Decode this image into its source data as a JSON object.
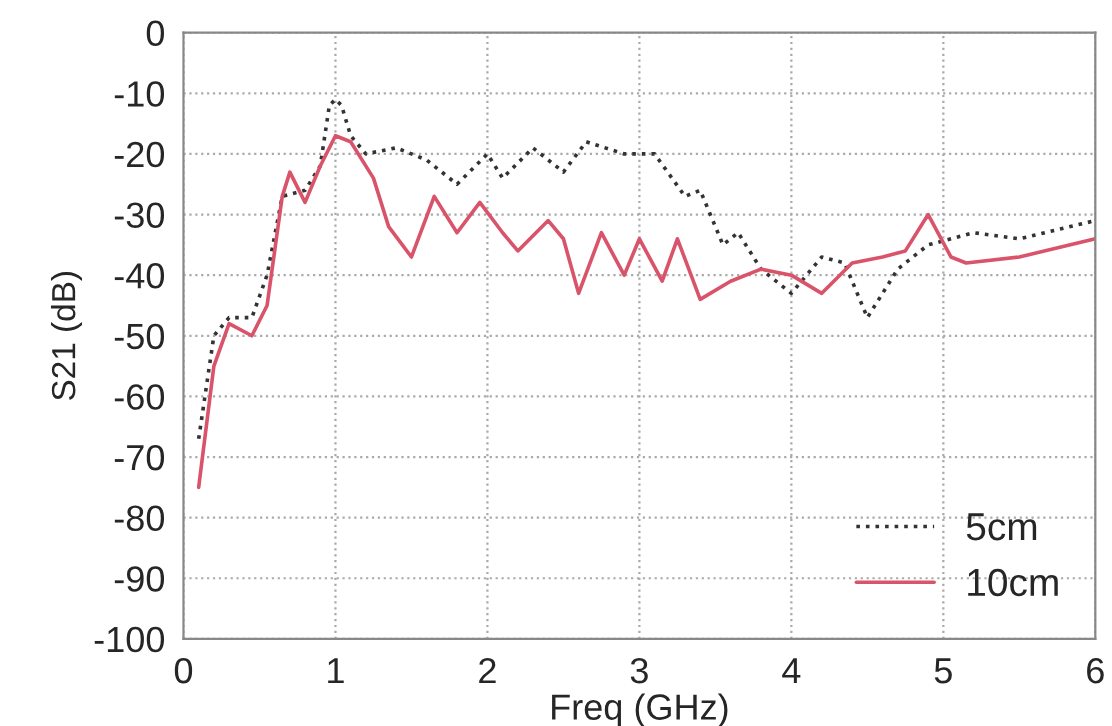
{
  "chart_data": {
    "type": "line",
    "xlabel": "Freq (GHz)",
    "ylabel": "S21 (dB)",
    "xlim": [
      0,
      6
    ],
    "ylim": [
      -100,
      0
    ],
    "xticks": [
      0,
      1,
      2,
      3,
      4,
      5,
      6
    ],
    "yticks": [
      -100,
      -90,
      -80,
      -70,
      -60,
      -50,
      -40,
      -30,
      -20,
      -10,
      0
    ],
    "grid": true,
    "legend": "bottom right",
    "series": [
      {
        "name": "5cm",
        "color": "#333333",
        "line_style": "dotted",
        "x": [
          0.1,
          0.2,
          0.3,
          0.45,
          0.55,
          0.65,
          0.8,
          0.9,
          0.96,
          1.0,
          1.04,
          1.1,
          1.2,
          1.4,
          1.6,
          1.8,
          2.0,
          2.1,
          2.3,
          2.5,
          2.65,
          2.9,
          3.1,
          3.3,
          3.4,
          3.55,
          3.65,
          3.8,
          4.0,
          4.2,
          4.35,
          4.5,
          4.7,
          4.9,
          5.2,
          5.5,
          6.0
        ],
        "values": [
          -67,
          -50,
          -47,
          -47,
          -40,
          -27,
          -26,
          -22,
          -12,
          -11,
          -12,
          -17,
          -20,
          -19,
          -21,
          -25,
          -20,
          -24,
          -19,
          -23,
          -18,
          -20,
          -20,
          -27,
          -26,
          -35,
          -33,
          -39,
          -43,
          -37,
          -38,
          -47,
          -39,
          -35,
          -33,
          -34,
          -31
        ]
      },
      {
        "name": "10cm",
        "color": "#d9546a",
        "line_style": "solid",
        "x": [
          0.1,
          0.2,
          0.3,
          0.45,
          0.55,
          0.65,
          0.7,
          0.8,
          0.9,
          1.0,
          1.1,
          1.25,
          1.35,
          1.5,
          1.65,
          1.8,
          1.95,
          2.1,
          2.2,
          2.4,
          2.5,
          2.6,
          2.75,
          2.9,
          3.0,
          3.15,
          3.25,
          3.4,
          3.6,
          3.8,
          4.0,
          4.2,
          4.4,
          4.6,
          4.75,
          4.9,
          5.05,
          5.15,
          5.5,
          6.0
        ],
        "values": [
          -75,
          -55,
          -48,
          -50,
          -45,
          -27,
          -23,
          -28,
          -22,
          -17,
          -18,
          -24,
          -32,
          -37,
          -27,
          -33,
          -28,
          -33,
          -36,
          -31,
          -34,
          -43,
          -33,
          -40,
          -34,
          -41,
          -34,
          -44,
          -41,
          -39,
          -40,
          -43,
          -38,
          -37,
          -36,
          -30,
          -37,
          -38,
          -37,
          -34
        ]
      }
    ]
  }
}
